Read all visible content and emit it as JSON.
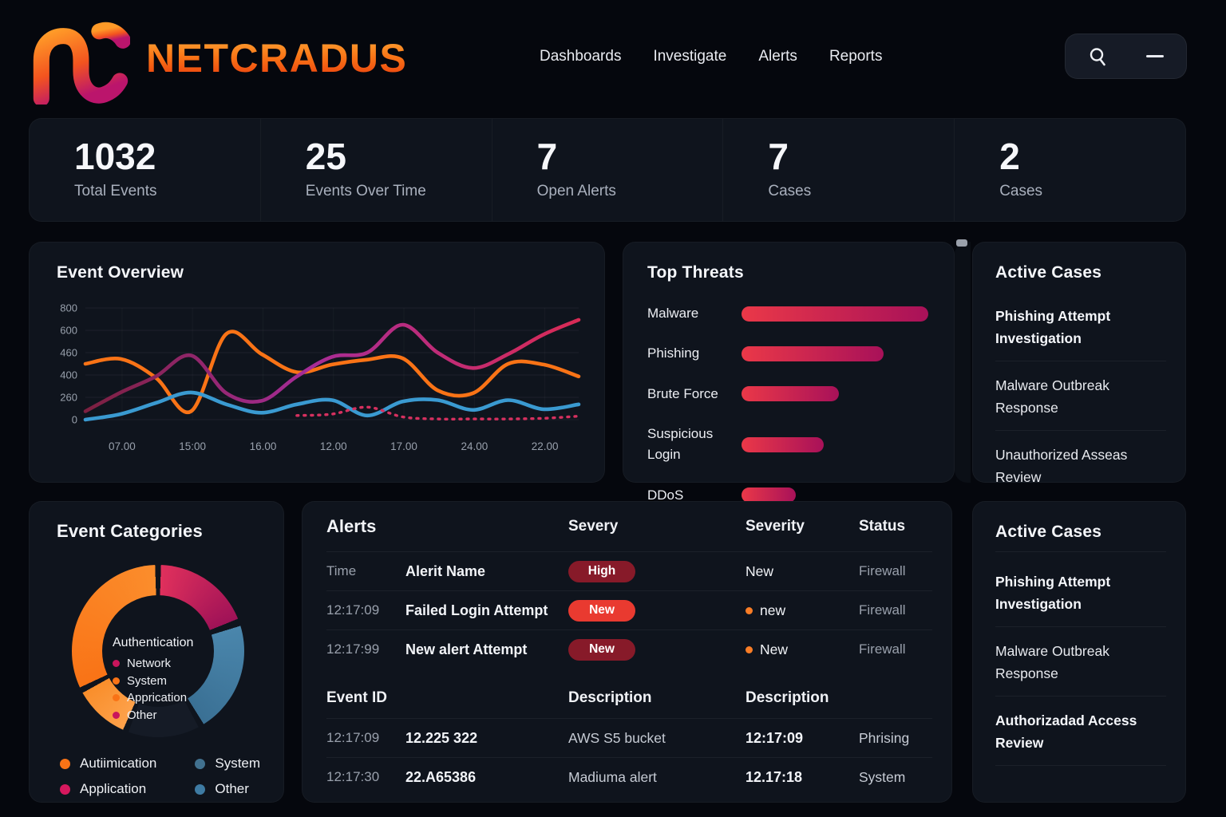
{
  "nav": {
    "brand": "NETCRADUS",
    "items": [
      "Dashboards",
      "Investigate",
      "Alerts",
      "Reports"
    ]
  },
  "stats": [
    {
      "value": "1032",
      "label": "Total Events"
    },
    {
      "value": "25",
      "label": "Events Over Time"
    },
    {
      "value": "7",
      "label": "Open Alerts"
    },
    {
      "value": "7",
      "label": "Cases"
    },
    {
      "value": "2",
      "label": "Cases"
    }
  ],
  "event_overview": {
    "title": "Event Overview"
  },
  "top_threats": {
    "title": "Top Threats"
  },
  "chart_data": [
    {
      "type": "line",
      "title": "Event Overview",
      "x_ticks": [
        "07.00",
        "15:00",
        "16.00",
        "12.00",
        "17.00",
        "24.00",
        "22.00"
      ],
      "y_ticks": [
        "800",
        "600",
        "460",
        "400",
        "260",
        "0"
      ],
      "ylim": [
        0,
        800
      ],
      "grid": true,
      "series": [
        {
          "name": "orange",
          "color": "#f97316",
          "values": [
            400,
            435,
            300,
            60,
            615,
            470,
            340,
            395,
            430,
            440,
            210,
            190,
            400,
            395,
            310
          ]
        },
        {
          "name": "magenta",
          "color": "gradient-magenta",
          "values": [
            60,
            195,
            310,
            460,
            190,
            135,
            310,
            450,
            480,
            680,
            480,
            370,
            470,
            610,
            715
          ]
        },
        {
          "name": "blue",
          "color": "#3a9ad1",
          "values": [
            0,
            40,
            120,
            195,
            110,
            50,
            110,
            140,
            30,
            130,
            140,
            70,
            140,
            75,
            110
          ]
        },
        {
          "name": "crimson-dotted",
          "color": "#d6305f",
          "dashed": true,
          "values": [
            null,
            null,
            null,
            null,
            null,
            null,
            30,
            40,
            90,
            20,
            5,
            5,
            5,
            10,
            25
          ]
        }
      ]
    },
    {
      "type": "bar",
      "orientation": "horizontal",
      "title": "Top Threats",
      "categories": [
        "Malware",
        "Phishing",
        "Brute Force",
        "Suspicious Login",
        "DDoS"
      ],
      "values": [
        100,
        76,
        52,
        44,
        29
      ],
      "value_unit": "percent of max bar width",
      "bar_gradient": [
        "#ea3848",
        "#a81159"
      ]
    },
    {
      "type": "pie",
      "title": "Event Categories",
      "donut": true,
      "segments": [
        {
          "label": "Network",
          "from_deg": 2,
          "to_deg": 68,
          "pct": 18,
          "color_start": "#e0305c",
          "color_end": "#9f1257"
        },
        {
          "label": "System",
          "from_deg": 73,
          "to_deg": 148,
          "pct": 21,
          "color_start": "#4a86ac",
          "color_end": "#3a7094"
        },
        {
          "label": "unlabeled-dark",
          "from_deg": 152,
          "to_deg": 200,
          "pct": 13,
          "color_start": "#151b26",
          "color_end": "#151b26"
        },
        {
          "label": "Other",
          "from_deg": 204,
          "to_deg": 241,
          "pct": 10,
          "color_start": "#fda14a",
          "color_end": "#f98e2b"
        },
        {
          "label": "Authentication",
          "from_deg": 245,
          "to_deg": 358,
          "pct": 31,
          "color_start": "#f97316",
          "color_end": "#fb8d2c"
        }
      ]
    }
  ],
  "active_cases_top": {
    "title": "Active Cases",
    "cases": [
      "Phishing Attempt Investigation",
      "Malware Outbreak Response",
      "Unauthorized Asseas Review"
    ]
  },
  "active_cases_bottom": {
    "title": "Active Cases",
    "cases": [
      "Phishing Attempt Investigation",
      "Malware Outbreak Response",
      "Authorizadad Access Review"
    ]
  },
  "event_categories": {
    "title": "Event Categories",
    "center_legend": {
      "title": "Authentication",
      "items": [
        {
          "label": "Network",
          "color": "#c9155c"
        },
        {
          "label": "System",
          "color": "#f97316"
        },
        {
          "label": "Apprication",
          "color": "#f97316"
        },
        {
          "label": "Other",
          "color": "#c9155c"
        }
      ]
    },
    "bottom_legend": [
      {
        "label": "Autiimication",
        "color": "#f97316"
      },
      {
        "label": "Application",
        "color": "#d6185e"
      },
      {
        "label": "System",
        "color": "#41718f"
      },
      {
        "label": "Other",
        "color": "#3e7ba3"
      }
    ]
  },
  "alerts": {
    "title": "Alerts",
    "columns": [
      "Severy",
      "Severity",
      "Status"
    ],
    "rows": [
      {
        "time": "Time",
        "name": "Alerit Name",
        "badge": "High",
        "severity": "New",
        "status": "Firewall"
      },
      {
        "time": "12:17:09",
        "name": "Failed Login Attempt",
        "badge": "New",
        "severity": "new",
        "status": "Firewall"
      },
      {
        "time": "12:17:99",
        "name": "New alert Attempt",
        "badge": "New",
        "severity": "New",
        "status": "Firewall"
      }
    ],
    "events_section": {
      "columns": [
        "Event ID",
        "Description",
        "Description"
      ],
      "rows": [
        {
          "time": "12:17:09",
          "event_id": "12.225 322",
          "description": "AWS S5 bucket",
          "time2": "12:17:09",
          "description2": "Phrising"
        },
        {
          "time": "12:17:30",
          "event_id": "22.A65386",
          "description": "Madiuma alert",
          "time2": "12.17:18",
          "description2": "System"
        }
      ]
    }
  },
  "colors": {
    "page_bg": "#05070d",
    "panel_bg": "#0f141d",
    "accent_orange": "#f97316",
    "accent_blue": "#3a9ad1",
    "accent_magenta": "#a62c97",
    "accent_crimson": "#d92b55",
    "badge_maroon": "#871a29",
    "badge_red": "#e93a30",
    "severity_dot": "#f97d26"
  }
}
